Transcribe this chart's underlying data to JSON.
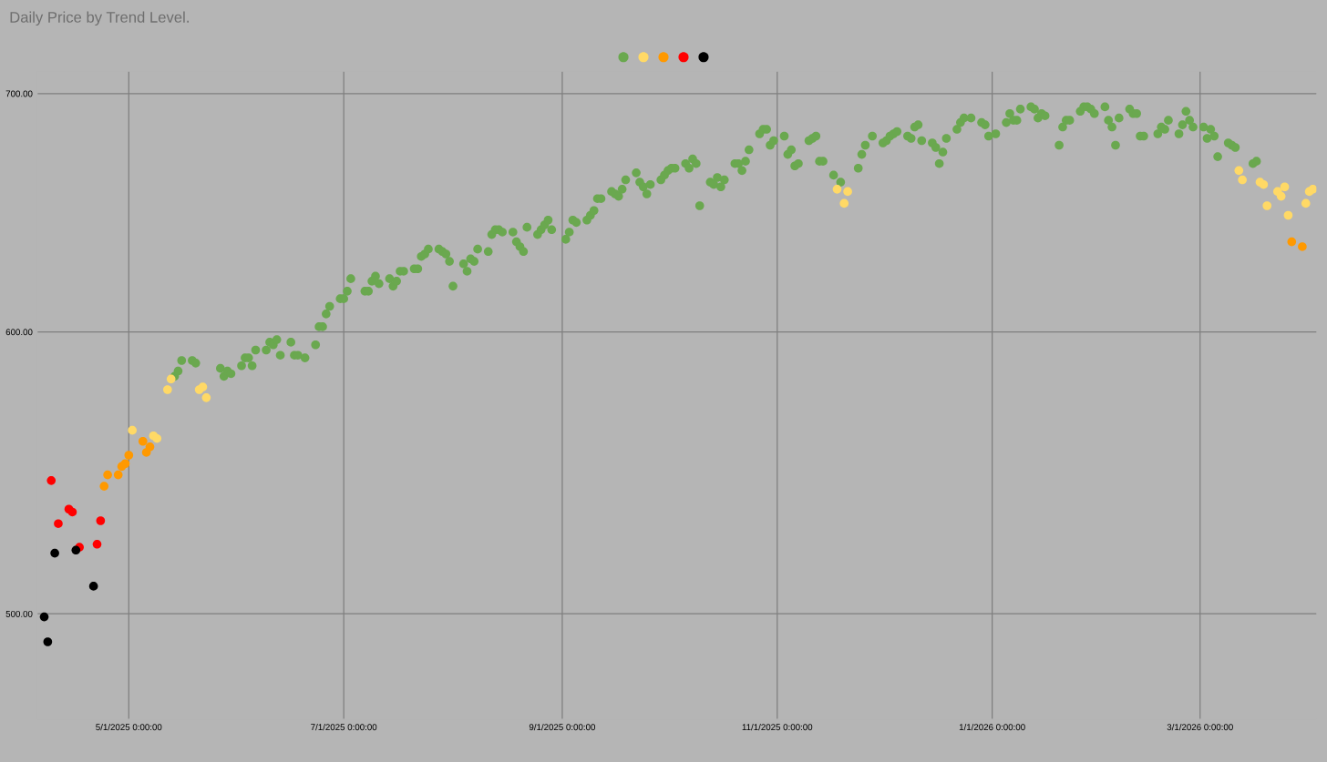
{
  "chart_data": {
    "type": "scatter",
    "title": "Daily Price by Trend Level.",
    "xlim": [
      "2025-04-05",
      "2026-04-03"
    ],
    "xticks": [
      {
        "value": "2025-05-01",
        "label": "5/1/2025 0:00:00"
      },
      {
        "value": "2025-07-01",
        "label": "7/1/2025 0:00:00"
      },
      {
        "value": "2025-09-01",
        "label": "9/1/2025 0:00:00"
      },
      {
        "value": "2025-11-01",
        "label": "11/1/2025 0:00:00"
      },
      {
        "value": "2026-01-01",
        "label": "1/1/2026 0:00:00"
      },
      {
        "value": "2026-03-01",
        "label": "3/1/2026 0:00:00"
      }
    ],
    "log": "y",
    "ylim": [
      467,
      710
    ],
    "yticks": [
      {
        "value": 500,
        "label": "500.00"
      },
      {
        "value": 600,
        "label": "600.00"
      },
      {
        "value": 700,
        "label": "700.00"
      }
    ],
    "grid": true,
    "marker": "circle",
    "series": [
      {
        "color": "#6aa84f",
        "x": [
          "2025-05-14",
          "2025-05-15",
          "2025-05-16",
          "2025-05-19",
          "2025-05-20",
          "2025-05-27",
          "2025-05-28",
          "2025-05-29",
          "2025-05-30",
          "2025-06-02",
          "2025-06-03",
          "2025-06-04",
          "2025-06-05",
          "2025-06-06",
          "2025-06-09",
          "2025-06-10",
          "2025-06-11",
          "2025-06-12",
          "2025-06-13",
          "2025-06-16",
          "2025-06-17",
          "2025-06-18",
          "2025-06-20",
          "2025-06-23",
          "2025-06-24",
          "2025-06-25",
          "2025-06-26",
          "2025-06-27",
          "2025-06-30",
          "2025-07-01",
          "2025-07-02",
          "2025-07-03",
          "2025-07-07",
          "2025-07-08",
          "2025-07-09",
          "2025-07-10",
          "2025-07-11",
          "2025-07-14",
          "2025-07-15",
          "2025-07-16",
          "2025-07-17",
          "2025-07-18",
          "2025-07-21",
          "2025-07-22",
          "2025-07-23",
          "2025-07-24",
          "2025-07-25",
          "2025-07-28",
          "2025-07-29",
          "2025-07-30",
          "2025-07-31",
          "2025-08-01",
          "2025-08-04",
          "2025-08-05",
          "2025-08-06",
          "2025-08-07",
          "2025-08-08",
          "2025-08-11",
          "2025-08-12",
          "2025-08-13",
          "2025-08-14",
          "2025-08-15",
          "2025-08-18",
          "2025-08-19",
          "2025-08-20",
          "2025-08-21",
          "2025-08-22",
          "2025-08-25",
          "2025-08-26",
          "2025-08-27",
          "2025-08-28",
          "2025-08-29",
          "2025-09-02",
          "2025-09-03",
          "2025-09-04",
          "2025-09-05",
          "2025-09-08",
          "2025-09-09",
          "2025-09-10",
          "2025-09-11",
          "2025-09-12",
          "2025-09-15",
          "2025-09-16",
          "2025-09-17",
          "2025-09-18",
          "2025-09-19",
          "2025-09-22",
          "2025-09-23",
          "2025-09-24",
          "2025-09-25",
          "2025-09-26",
          "2025-09-29",
          "2025-09-30",
          "2025-10-01",
          "2025-10-02",
          "2025-10-03",
          "2025-10-06",
          "2025-10-07",
          "2025-10-08",
          "2025-10-09",
          "2025-10-10",
          "2025-10-13",
          "2025-10-14",
          "2025-10-15",
          "2025-10-16",
          "2025-10-17",
          "2025-10-20",
          "2025-10-21",
          "2025-10-22",
          "2025-10-23",
          "2025-10-24",
          "2025-10-27",
          "2025-10-28",
          "2025-10-29",
          "2025-10-30",
          "2025-10-31",
          "2025-11-03",
          "2025-11-04",
          "2025-11-05",
          "2025-11-06",
          "2025-11-07",
          "2025-11-10",
          "2025-11-11",
          "2025-11-12",
          "2025-11-13",
          "2025-11-14",
          "2025-11-17",
          "2025-11-19",
          "2025-11-24",
          "2025-11-25",
          "2025-11-26",
          "2025-11-28",
          "2025-12-01",
          "2025-12-02",
          "2025-12-03",
          "2025-12-04",
          "2025-12-05",
          "2025-12-08",
          "2025-12-09",
          "2025-12-10",
          "2025-12-11",
          "2025-12-12",
          "2025-12-15",
          "2025-12-16",
          "2025-12-17",
          "2025-12-18",
          "2025-12-19",
          "2025-12-22",
          "2025-12-23",
          "2025-12-24",
          "2025-12-26",
          "2025-12-29",
          "2025-12-30",
          "2025-12-31",
          "2026-01-02",
          "2026-01-05",
          "2026-01-06",
          "2026-01-07",
          "2026-01-08",
          "2026-01-09",
          "2026-01-12",
          "2026-01-13",
          "2026-01-14",
          "2026-01-15",
          "2026-01-16",
          "2026-01-20",
          "2026-01-21",
          "2026-01-22",
          "2026-01-23",
          "2026-01-26",
          "2026-01-27",
          "2026-01-28",
          "2026-01-29",
          "2026-01-30",
          "2026-02-02",
          "2026-02-03",
          "2026-02-04",
          "2026-02-05",
          "2026-02-06",
          "2026-02-09",
          "2026-02-10",
          "2026-02-11",
          "2026-02-12",
          "2026-02-13",
          "2026-02-17",
          "2026-02-18",
          "2026-02-19",
          "2026-02-20",
          "2026-02-23",
          "2026-02-24",
          "2026-02-25",
          "2026-02-26",
          "2026-02-27",
          "2026-03-02",
          "2026-03-03",
          "2026-03-04",
          "2026-03-05",
          "2026-03-06",
          "2026-03-09",
          "2026-03-10",
          "2026-03-11",
          "2026-03-16",
          "2026-03-17"
        ],
        "values": [
          583,
          585,
          589,
          589,
          588,
          586,
          583,
          585,
          584,
          587,
          590,
          590,
          587,
          593,
          593,
          596,
          595,
          597,
          591,
          596,
          591,
          591,
          590,
          595,
          602,
          602,
          607,
          610,
          613,
          613,
          616,
          621,
          616,
          616,
          620,
          622,
          619,
          621,
          618,
          620,
          624,
          624,
          625,
          625,
          630,
          631,
          633,
          633,
          632,
          631,
          628,
          618,
          627,
          624,
          629,
          628,
          633,
          632,
          639,
          641,
          641,
          640,
          640,
          636,
          634,
          632,
          642,
          639,
          641,
          643,
          645,
          641,
          637,
          640,
          645,
          644,
          645,
          647,
          649,
          654,
          654,
          657,
          656,
          655,
          658,
          662,
          665,
          661,
          659,
          656,
          660,
          662,
          664,
          666,
          667,
          667,
          669,
          667,
          671,
          669,
          651,
          661,
          660,
          663,
          659,
          662,
          669,
          669,
          666,
          670,
          675,
          682,
          684,
          684,
          677,
          679,
          681,
          673,
          675,
          668,
          669,
          679,
          680,
          681,
          670,
          670,
          664,
          661,
          667,
          673,
          677,
          681,
          678,
          679,
          681,
          682,
          683,
          681,
          680,
          685,
          686,
          679,
          678,
          676,
          669,
          674,
          680,
          684,
          687,
          689,
          689,
          687,
          686,
          681,
          682,
          687,
          691,
          688,
          688,
          693,
          694,
          693,
          689,
          691,
          690,
          677,
          685,
          688,
          688,
          692,
          694,
          694,
          693,
          691,
          694,
          688,
          685,
          677,
          689,
          693,
          691,
          691,
          681,
          681,
          682,
          685,
          684,
          688,
          682,
          686,
          692,
          688,
          685,
          685,
          680,
          684,
          681,
          672,
          678,
          677,
          676,
          669,
          670
        ]
      },
      {
        "color": "#ffd966",
        "x": [
          "2025-05-02",
          "2025-05-08",
          "2025-05-09",
          "2025-05-12",
          "2025-05-13",
          "2025-05-21",
          "2025-05-22",
          "2025-05-23",
          "2025-11-18",
          "2025-11-20",
          "2025-11-21",
          "2026-03-12",
          "2026-03-13",
          "2026-03-18",
          "2026-03-19",
          "2026-03-20",
          "2026-03-23",
          "2026-03-24",
          "2026-03-25",
          "2026-03-26",
          "2026-03-31",
          "2026-04-01",
          "2026-04-02"
        ],
        "values": [
          563,
          561,
          560,
          578,
          582,
          578,
          579,
          575,
          658,
          652,
          657,
          666,
          662,
          661,
          660,
          651,
          657,
          655,
          659,
          647,
          652,
          657,
          658
        ]
      },
      {
        "color": "#ff9900",
        "x": [
          "2025-04-24",
          "2025-04-25",
          "2025-04-28",
          "2025-04-29",
          "2025-04-30",
          "2025-05-01",
          "2025-05-05",
          "2025-05-06",
          "2025-05-07",
          "2026-03-27",
          "2026-03-30"
        ],
        "values": [
          543,
          547,
          547,
          550,
          551,
          554,
          559,
          555,
          557,
          636,
          634
        ]
      },
      {
        "color": "#ff0000",
        "x": [
          "2025-04-09",
          "2025-04-11",
          "2025-04-14",
          "2025-04-15",
          "2025-04-17",
          "2025-04-22",
          "2025-04-23"
        ],
        "values": [
          545,
          530,
          535,
          534,
          522,
          523,
          531
        ]
      },
      {
        "color": "#000000",
        "x": [
          "2025-04-07",
          "2025-04-08",
          "2025-04-10",
          "2025-04-16",
          "2025-04-21"
        ],
        "values": [
          499,
          491,
          520,
          521,
          509
        ]
      }
    ]
  }
}
